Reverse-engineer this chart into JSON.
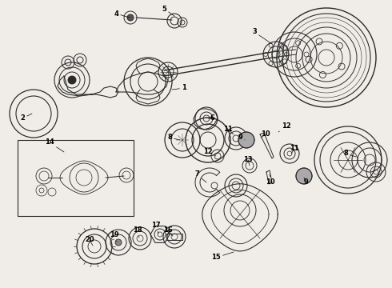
{
  "bg_color": "#f0ede8",
  "line_color": "#2a2a2a",
  "fig_width": 4.9,
  "fig_height": 3.6,
  "dpi": 100,
  "annotations": [
    [
      "1",
      195,
      108,
      230,
      120
    ],
    [
      "2",
      28,
      148,
      55,
      138
    ],
    [
      "3",
      320,
      38,
      345,
      55
    ],
    [
      "4",
      148,
      16,
      165,
      22
    ],
    [
      "5",
      205,
      10,
      215,
      18
    ],
    [
      "6",
      268,
      148,
      275,
      140
    ],
    [
      "7",
      248,
      218,
      262,
      225
    ],
    [
      "8",
      215,
      175,
      228,
      178
    ],
    [
      "8",
      430,
      192,
      418,
      196
    ],
    [
      "9",
      302,
      175,
      298,
      178
    ],
    [
      "9",
      385,
      228,
      378,
      220
    ],
    [
      "10",
      330,
      170,
      325,
      175
    ],
    [
      "10",
      338,
      228,
      335,
      218
    ],
    [
      "11",
      285,
      165,
      283,
      170
    ],
    [
      "11",
      368,
      188,
      362,
      194
    ],
    [
      "12",
      360,
      162,
      348,
      168
    ],
    [
      "12",
      262,
      192,
      272,
      195
    ],
    [
      "13",
      315,
      200,
      312,
      208
    ],
    [
      "14",
      65,
      182,
      90,
      195
    ],
    [
      "15",
      270,
      325,
      295,
      318
    ],
    [
      "16",
      212,
      292,
      218,
      300
    ],
    [
      "17",
      198,
      285,
      202,
      295
    ],
    [
      "18",
      175,
      292,
      180,
      300
    ],
    [
      "19",
      148,
      298,
      152,
      305
    ],
    [
      "20",
      118,
      305,
      122,
      310
    ]
  ]
}
